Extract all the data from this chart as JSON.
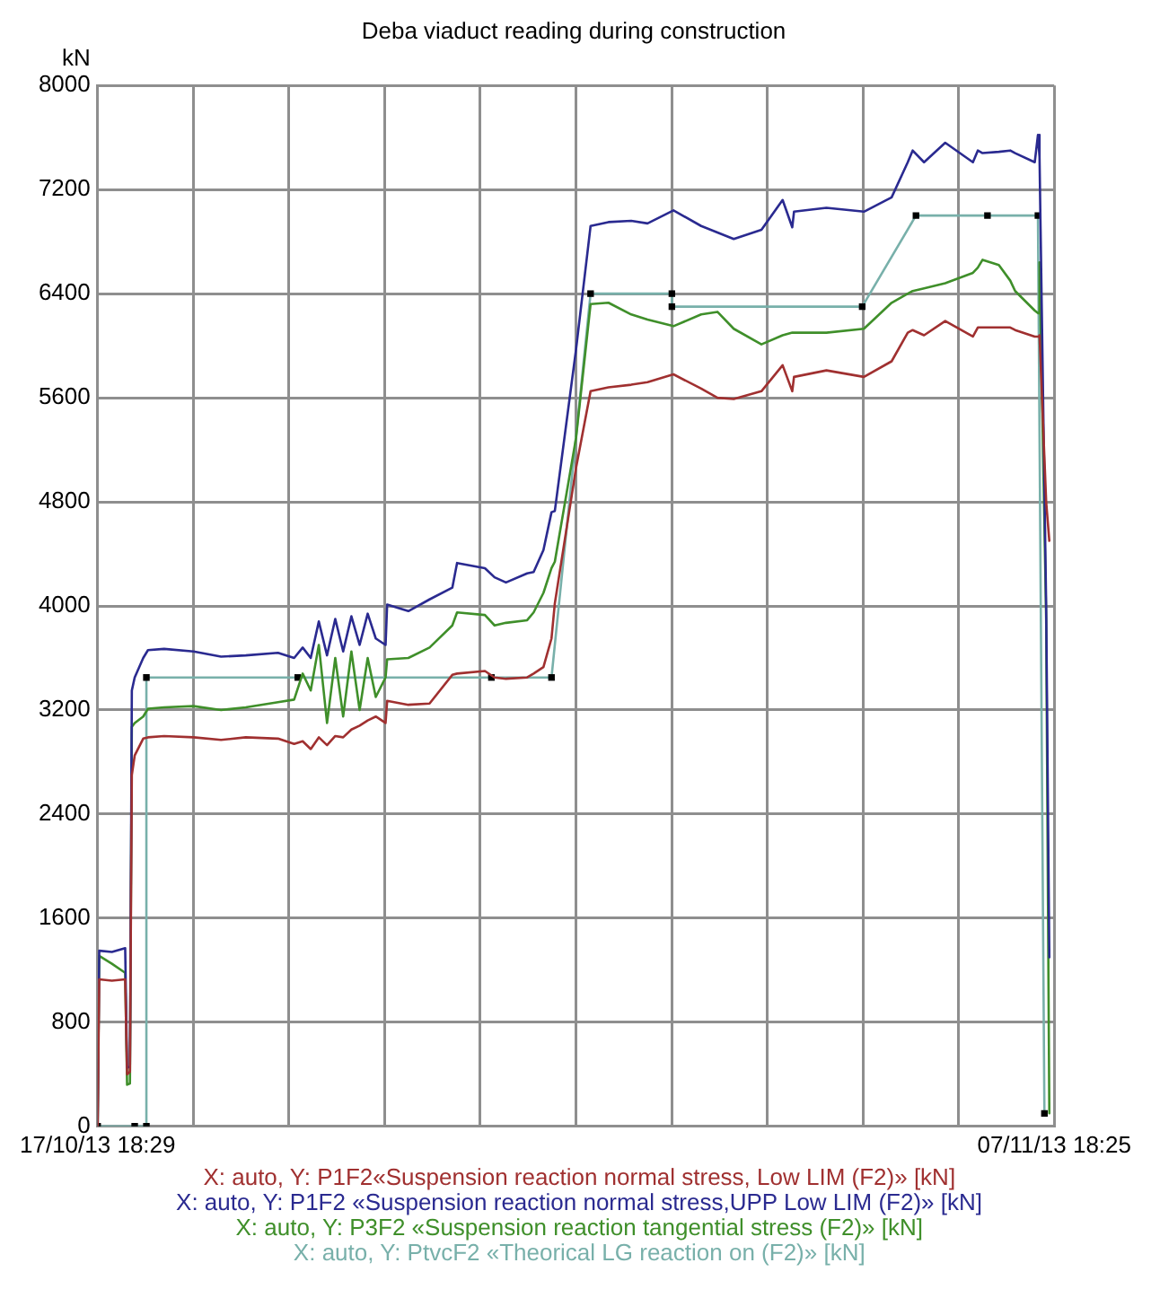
{
  "chart_data": {
    "type": "line",
    "title": "Deba viaduct reading during construction",
    "ylabel": "kN",
    "x": [
      "--10-17T18:29",
      "--10-17T19:20",
      "--10-18T02:00",
      "--10-18T09:00",
      "--10-18T10:00",
      "--10-18T11:30",
      "--10-18T12:30",
      "--10-18T14:00",
      "--10-18T18:30",
      "--10-18T21:00",
      "--10-19T05:30",
      "--10-19T21:00",
      "--10-20T11:30",
      "--10-21T00:30",
      "--10-21T17:30",
      "--10-22T02:00",
      "--10-22T06:30",
      "--10-22T10:45",
      "--10-22T15:00",
      "--10-22T19:20",
      "--10-22T23:40",
      "--10-23T03:50",
      "--10-23T08:10",
      "--10-23T12:30",
      "--10-23T16:45",
      "--10-23T21:00",
      "--10-24T02:10",
      "--10-24T03:00",
      "--10-24T14:10",
      "--10-25T01:20",
      "--10-25T13:20",
      "--10-25T15:50",
      "--10-26T06:30",
      "--10-26T11:35",
      "--10-26T17:35",
      "--10-27T04:45",
      "--10-27T08:10",
      "--10-27T13:20",
      "--10-27T17:35",
      "--10-27T19:20",
      "--10-28T06:30",
      "--10-28T14:10",
      "--10-28T23:35",
      "--10-29T11:35",
      "--10-29T20:10",
      "--10-30T09:50",
      "--10-31T00:25",
      "--10-31T09:00",
      "--10-31T17:35",
      "--11-01T08:10",
      "--11-01T19:20",
      "--11-02T00:25",
      "--11-02T01:20",
      "--11-02T18:25",
      "--11-03T14:10",
      "--11-04T04:45",
      "--11-04T13:15",
      "--11-04T15:50",
      "--11-04T21:50",
      "--11-05T09:00",
      "--11-05T23:35",
      "--11-06T02:10",
      "--11-06T04:40",
      "--11-06T13:15",
      "--11-06T19:15",
      "--11-06T21:50",
      "--11-07T08:10",
      "--11-07T09:50",
      "--11-07T10:40",
      "--11-07T14:10",
      "--11-07T15:50"
    ],
    "series": [
      {
        "name": "X: auto, Y: P1F2«Suspension reaction normal stress, Low LIM (F2)» [kN]",
        "color": "#a03030",
        "values": [
          0,
          1130,
          1120,
          1130,
          400,
          420,
          2700,
          2850,
          2980,
          2990,
          3000,
          2990,
          2970,
          2990,
          2980,
          2940,
          2960,
          2900,
          2990,
          2930,
          3000,
          2990,
          3050,
          3080,
          3120,
          3150,
          3100,
          3270,
          3240,
          3250,
          3470,
          3480,
          3500,
          3450,
          3440,
          3450,
          3480,
          3530,
          3750,
          4020,
          5060,
          5650,
          5680,
          5700,
          5720,
          5780,
          5670,
          5600,
          5590,
          5650,
          5850,
          5650,
          5760,
          5810,
          5760,
          5880,
          6100,
          6120,
          6080,
          6190,
          6070,
          6140,
          6140,
          6140,
          6140,
          6120,
          6070,
          6070,
          6080,
          4800,
          4500
        ]
      },
      {
        "name": "X: auto, Y: P1F2 «Suspension reaction normal stress,UPP Low LIM (F2)» [kN]",
        "color": "#2a2a90",
        "values": [
          0,
          1350,
          1340,
          1370,
          450,
          460,
          3350,
          3450,
          3600,
          3660,
          3670,
          3650,
          3610,
          3620,
          3640,
          3600,
          3680,
          3600,
          3880,
          3620,
          3900,
          3650,
          3920,
          3700,
          3940,
          3750,
          3700,
          4010,
          3960,
          4050,
          4140,
          4330,
          4290,
          4220,
          4180,
          4250,
          4260,
          4430,
          4720,
          4730,
          5970,
          6920,
          6950,
          6960,
          6940,
          7040,
          6920,
          6870,
          6820,
          6890,
          7120,
          6910,
          7030,
          7060,
          7030,
          7140,
          7410,
          7500,
          7410,
          7560,
          7410,
          7500,
          7480,
          7490,
          7500,
          7480,
          7410,
          7620,
          7450,
          4000,
          1300
        ]
      },
      {
        "name": "X: auto, Y: P3F2 «Suspension reaction tangential stress (F2)» [kN]",
        "color": "#3f8f2a",
        "values": [
          0,
          1310,
          1250,
          1180,
          320,
          330,
          3070,
          3100,
          3150,
          3210,
          3220,
          3230,
          3200,
          3220,
          3260,
          3280,
          3480,
          3350,
          3700,
          3100,
          3600,
          3150,
          3650,
          3200,
          3600,
          3300,
          3450,
          3590,
          3600,
          3680,
          3850,
          3950,
          3930,
          3850,
          3870,
          3890,
          3950,
          4100,
          4290,
          4340,
          5290,
          6320,
          6330,
          6240,
          6200,
          6150,
          6240,
          6260,
          6130,
          6010,
          6080,
          6100,
          6100,
          6100,
          6130,
          6330,
          6400,
          6420,
          6440,
          6480,
          6560,
          6600,
          6660,
          6620,
          6500,
          6420,
          6270,
          6250,
          6640,
          3900,
          100
        ]
      },
      {
        "name": "X: auto, Y: PtvcF2 «Theorical LG reaction on (F2)» [kN]",
        "color": "#78b0aa",
        "marker": "square",
        "x": [
          "--10-17T18:29",
          "--10-18T14:00",
          "--10-18T20:10",
          "--10-18T20:10",
          "--10-22T03:55",
          "--10-26T09:55",
          "--10-27T17:35",
          "--10-28T14:10",
          "--10-30T09:00",
          "--10-30T09:00",
          "--11-03T13:15",
          "--11-04T17:35",
          "--11-06T07:15",
          "--11-07T09:50",
          "--11-07T13:15"
        ],
        "values": [
          0,
          0,
          0,
          3450,
          3450,
          3450,
          3450,
          6400,
          6400,
          6300,
          6300,
          7000,
          7000,
          7000,
          100
        ]
      }
    ],
    "xlim": [
      "--10-17T18:29",
      "--11-07T18:25"
    ],
    "xticks": [
      {
        "value": "--10-17T18:29",
        "label": "17/10/13 18:29"
      },
      {
        "value": "--10-19T20:53",
        "label": null
      },
      {
        "value": "--10-21T23:16",
        "label": null
      },
      {
        "value": "--10-24T01:40",
        "label": null
      },
      {
        "value": "--10-26T04:03",
        "label": null
      },
      {
        "value": "--10-28T06:27",
        "label": null
      },
      {
        "value": "--10-30T08:50",
        "label": null
      },
      {
        "value": "--11-01T11:14",
        "label": null
      },
      {
        "value": "--11-03T13:38",
        "label": null
      },
      {
        "value": "--11-05T16:01",
        "label": null
      },
      {
        "value": "--11-07T18:25",
        "label": "07/11/13 18:25"
      }
    ],
    "ylim": [
      0,
      8000
    ],
    "yticks": [
      0,
      800,
      1600,
      2400,
      3200,
      4000,
      4800,
      5600,
      6400,
      7200,
      8000
    ],
    "grid": true,
    "legend": "bottom"
  }
}
